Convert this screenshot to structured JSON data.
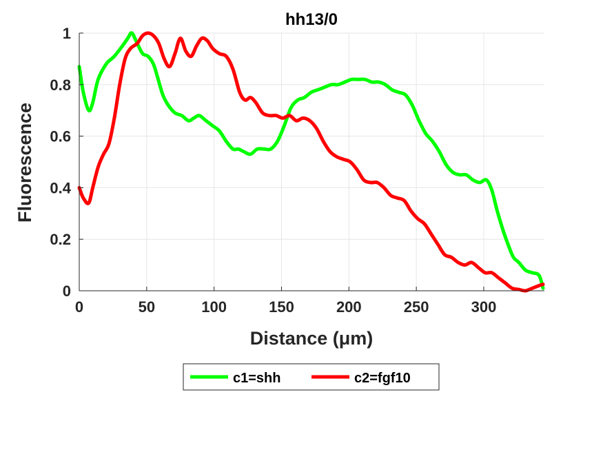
{
  "chart_data": {
    "type": "line",
    "title": "hh13/0",
    "xlabel": "Distance  (μm)",
    "ylabel": "Fluorescence",
    "xlim": [
      0,
      345
    ],
    "ylim": [
      0,
      1
    ],
    "xticks": [
      0,
      50,
      100,
      150,
      200,
      250,
      300
    ],
    "yticks": [
      0,
      0.2,
      0.4,
      0.6,
      0.8,
      1
    ],
    "xtick_labels": [
      "0",
      "50",
      "100",
      "150",
      "200",
      "250",
      "300"
    ],
    "ytick_labels": [
      "0",
      "0.2",
      "0.4",
      "0.6",
      "0.8",
      "1"
    ],
    "grid": true,
    "legend": {
      "position": "bottom-center",
      "orientation": "horizontal"
    },
    "series": [
      {
        "name": "c1=shh",
        "color": "#00ff00",
        "x": [
          0,
          3,
          7,
          10,
          14,
          20,
          26,
          32,
          36,
          39,
          43,
          47,
          51,
          55,
          58,
          62,
          66,
          71,
          76,
          81,
          85,
          89,
          94,
          99,
          104,
          109,
          114,
          118,
          122,
          127,
          132,
          137,
          142,
          147,
          152,
          157,
          162,
          167,
          172,
          177,
          182,
          187,
          192,
          197,
          202,
          207,
          212,
          217,
          222,
          227,
          232,
          237,
          242,
          247,
          252,
          257,
          262,
          267,
          272,
          277,
          282,
          287,
          292,
          297,
          302,
          306,
          310,
          314,
          318,
          322,
          326,
          331,
          336,
          341,
          344
        ],
        "y": [
          0.87,
          0.77,
          0.7,
          0.73,
          0.82,
          0.88,
          0.91,
          0.95,
          0.98,
          1.0,
          0.96,
          0.92,
          0.91,
          0.88,
          0.83,
          0.76,
          0.72,
          0.69,
          0.68,
          0.66,
          0.67,
          0.68,
          0.66,
          0.64,
          0.62,
          0.58,
          0.55,
          0.55,
          0.54,
          0.53,
          0.55,
          0.55,
          0.55,
          0.58,
          0.64,
          0.71,
          0.74,
          0.75,
          0.77,
          0.78,
          0.79,
          0.8,
          0.8,
          0.81,
          0.82,
          0.82,
          0.82,
          0.81,
          0.81,
          0.8,
          0.78,
          0.77,
          0.76,
          0.72,
          0.66,
          0.61,
          0.58,
          0.54,
          0.49,
          0.46,
          0.45,
          0.45,
          0.43,
          0.42,
          0.43,
          0.39,
          0.31,
          0.24,
          0.18,
          0.13,
          0.11,
          0.08,
          0.07,
          0.06,
          0.01
        ]
      },
      {
        "name": "c2=fgf10",
        "color": "#ff0000",
        "x": [
          0,
          3,
          7,
          10,
          14,
          18,
          22,
          26,
          30,
          34,
          38,
          43,
          47,
          51,
          55,
          59,
          63,
          67,
          71,
          75,
          79,
          83,
          87,
          91,
          95,
          99,
          104,
          109,
          114,
          119,
          123,
          127,
          131,
          136,
          141,
          146,
          151,
          156,
          161,
          166,
          171,
          176,
          181,
          186,
          191,
          196,
          201,
          206,
          211,
          216,
          221,
          226,
          231,
          236,
          241,
          246,
          251,
          256,
          261,
          266,
          271,
          276,
          281,
          286,
          291,
          296,
          301,
          306,
          311,
          316,
          321,
          326,
          331,
          336,
          341,
          344
        ],
        "y": [
          0.4,
          0.36,
          0.34,
          0.4,
          0.48,
          0.53,
          0.57,
          0.67,
          0.8,
          0.9,
          0.94,
          0.96,
          0.99,
          1.0,
          0.99,
          0.96,
          0.9,
          0.87,
          0.92,
          0.98,
          0.93,
          0.91,
          0.95,
          0.98,
          0.97,
          0.94,
          0.92,
          0.91,
          0.86,
          0.77,
          0.74,
          0.75,
          0.73,
          0.69,
          0.68,
          0.68,
          0.67,
          0.68,
          0.66,
          0.67,
          0.66,
          0.63,
          0.58,
          0.54,
          0.52,
          0.51,
          0.5,
          0.47,
          0.43,
          0.42,
          0.42,
          0.4,
          0.37,
          0.36,
          0.35,
          0.31,
          0.28,
          0.26,
          0.22,
          0.18,
          0.14,
          0.13,
          0.11,
          0.1,
          0.11,
          0.09,
          0.07,
          0.07,
          0.05,
          0.03,
          0.01,
          0.005,
          0.0,
          0.01,
          0.02,
          0.025
        ]
      }
    ]
  }
}
